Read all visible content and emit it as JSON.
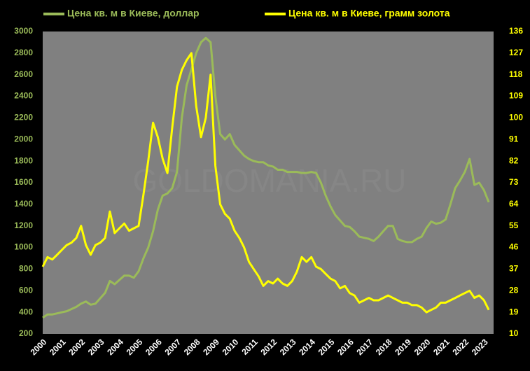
{
  "chart_data": {
    "type": "line",
    "watermark": "GOLDOMANIA.RU",
    "x": [
      2000,
      2000.25,
      2000.5,
      2000.75,
      2001,
      2001.25,
      2001.5,
      2001.75,
      2002,
      2002.25,
      2002.5,
      2002.75,
      2003,
      2003.25,
      2003.5,
      2003.75,
      2004,
      2004.25,
      2004.5,
      2004.75,
      2005,
      2005.25,
      2005.5,
      2005.75,
      2006,
      2006.25,
      2006.5,
      2006.75,
      2007,
      2007.25,
      2007.5,
      2007.75,
      2008,
      2008.25,
      2008.5,
      2008.75,
      2009,
      2009.25,
      2009.5,
      2009.75,
      2010,
      2010.25,
      2010.5,
      2010.75,
      2011,
      2011.25,
      2011.5,
      2011.75,
      2012,
      2012.25,
      2012.5,
      2012.75,
      2013,
      2013.25,
      2013.5,
      2013.75,
      2014,
      2014.25,
      2014.5,
      2014.75,
      2015,
      2015.25,
      2015.5,
      2015.75,
      2016,
      2016.25,
      2016.5,
      2016.75,
      2017,
      2017.25,
      2017.5,
      2017.75,
      2018,
      2018.25,
      2018.5,
      2018.75,
      2019,
      2019.25,
      2019.5,
      2019.75,
      2020,
      2020.25,
      2020.5,
      2020.75,
      2021,
      2021.25,
      2021.5,
      2021.75,
      2022,
      2022.25,
      2022.5,
      2022.75,
      2023,
      2023.25
    ],
    "series": [
      {
        "name": "Цена кв. м в Киеве, доллар",
        "color": "#9bbb59",
        "axis": "y",
        "values": [
          350,
          380,
          380,
          390,
          400,
          410,
          430,
          450,
          480,
          500,
          470,
          480,
          530,
          580,
          690,
          660,
          700,
          740,
          740,
          720,
          780,
          900,
          1000,
          1150,
          1350,
          1480,
          1500,
          1550,
          1700,
          2200,
          2500,
          2650,
          2800,
          2900,
          2940,
          2900,
          2400,
          2050,
          2000,
          2050,
          1950,
          1900,
          1850,
          1820,
          1800,
          1790,
          1790,
          1760,
          1750,
          1720,
          1720,
          1700,
          1700,
          1700,
          1690,
          1690,
          1700,
          1690,
          1600,
          1480,
          1380,
          1300,
          1250,
          1200,
          1190,
          1150,
          1100,
          1090,
          1080,
          1060,
          1100,
          1150,
          1200,
          1200,
          1080,
          1060,
          1050,
          1050,
          1080,
          1100,
          1180,
          1240,
          1220,
          1230,
          1260,
          1400,
          1550,
          1620,
          1700,
          1820,
          1580,
          1600,
          1530,
          1420
        ]
      },
      {
        "name": "Цена кв. м в Киеве, грамм золота",
        "color": "#ffff00",
        "axis": "y2",
        "values": [
          38,
          42,
          41,
          43,
          45,
          47,
          48,
          50,
          55,
          47,
          43,
          47,
          48,
          50,
          61,
          52,
          54,
          56,
          53,
          54,
          55,
          68,
          82,
          98,
          92,
          83,
          77,
          96,
          113,
          120,
          124,
          127,
          105,
          92,
          100,
          118,
          80,
          64,
          60,
          58,
          53,
          50,
          46,
          40,
          37,
          34,
          30,
          32,
          31,
          33,
          31,
          30,
          32,
          36,
          42,
          40,
          42,
          38,
          37,
          35,
          33,
          32,
          29,
          30,
          27,
          26,
          23,
          24,
          25,
          24,
          24,
          25,
          26,
          25,
          24,
          23,
          23,
          22,
          22,
          21,
          19,
          20,
          21,
          23,
          23,
          24,
          25,
          26,
          27,
          28,
          25,
          26,
          24,
          20
        ]
      }
    ],
    "xlim": [
      2000,
      2023.5
    ],
    "xticks": [
      2000,
      2001,
      2002,
      2003,
      2004,
      2005,
      2006,
      2007,
      2008,
      2009,
      2010,
      2011,
      2012,
      2013,
      2014,
      2015,
      2016,
      2017,
      2018,
      2019,
      2020,
      2021,
      2022,
      2023
    ],
    "ylim": [
      200,
      3000
    ],
    "yticks": [
      200,
      400,
      600,
      800,
      1000,
      1200,
      1400,
      1600,
      1800,
      2000,
      2200,
      2400,
      2600,
      2800,
      3000
    ],
    "y2lim": [
      10,
      136
    ],
    "y2ticks": [
      10,
      19,
      28,
      37,
      46,
      55,
      64,
      73,
      82,
      91,
      100,
      109,
      118,
      127,
      136
    ],
    "grid": false,
    "plot_background": "#808080"
  }
}
